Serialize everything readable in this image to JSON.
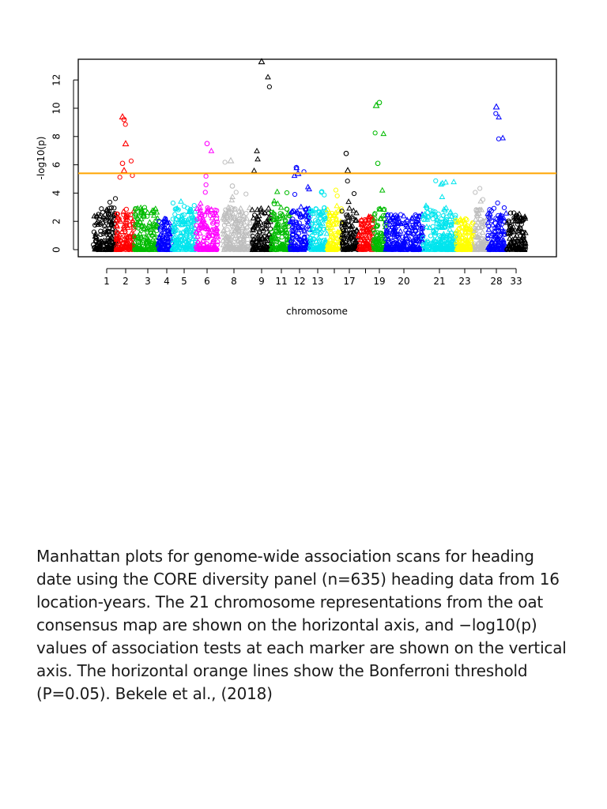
{
  "chart_data": {
    "type": "scatter",
    "xlabel": "chromosome",
    "ylabel": "-log10(p)",
    "ylim": [
      -0.5,
      13.5
    ],
    "yticks": [
      0,
      2,
      4,
      6,
      8,
      10,
      12
    ],
    "threshold": {
      "value": 5.4,
      "color": "#ffa500"
    },
    "grid": false,
    "legend": "none",
    "chromosomes": [
      {
        "label": "1",
        "color": "#000000",
        "max": 3.7
      },
      {
        "label": "2",
        "color": "#ff0000",
        "max": 9.4
      },
      {
        "label": "3",
        "color": "#00bb00",
        "max": 3.2
      },
      {
        "label": "4",
        "color": "#0000ff",
        "max": 2.2
      },
      {
        "label": "5",
        "color": "#00e5ee",
        "max": 3.5
      },
      {
        "label": "6",
        "color": "#ff00ff",
        "max": 7.5
      },
      {
        "label": "8",
        "color": "#bebebe",
        "max": 6.3
      },
      {
        "label": "9",
        "color": "#000000",
        "max": 13.3
      },
      {
        "label": "11",
        "color": "#00bb00",
        "max": 4.3
      },
      {
        "label": "12",
        "color": "#0000ff",
        "max": 5.8
      },
      {
        "label": "13",
        "color": "#00e5ee",
        "max": 4.3
      },
      {
        "label": "",
        "color": "#ffff00",
        "max": 4.8
      },
      {
        "label": "17",
        "color": "#000000",
        "max": 6.8
      },
      {
        "label": "",
        "color": "#ff0000",
        "max": 2.4
      },
      {
        "label": "19",
        "color": "#00bb00",
        "max": 10.4
      },
      {
        "label": "20",
        "color": "#0000ff",
        "max": 2.5
      },
      {
        "label": "21",
        "color": "#00e5ee",
        "max": 5.1
      },
      {
        "label": "23",
        "color": "#ffff00",
        "max": 2.2
      },
      {
        "label": "",
        "color": "#bebebe",
        "max": 4.5
      },
      {
        "label": "28",
        "color": "#0000ff",
        "max": 10.1
      },
      {
        "label": "33",
        "color": "#000000",
        "max": 2.6
      }
    ],
    "highlights": [
      {
        "chrom": "2",
        "y": 9.4
      },
      {
        "chrom": "2",
        "y": 9.2
      },
      {
        "chrom": "2",
        "y": 7.5
      },
      {
        "chrom": "2",
        "y": 6.1
      },
      {
        "chrom": "2",
        "y": 5.6
      },
      {
        "chrom": "6",
        "y": 7.5
      },
      {
        "chrom": "8",
        "y": 6.3
      },
      {
        "chrom": "8",
        "y": 4.5
      },
      {
        "chrom": "9",
        "y": 13.3
      },
      {
        "chrom": "17",
        "y": 6.8
      },
      {
        "chrom": "17",
        "y": 5.6
      },
      {
        "chrom": "19",
        "y": 10.4
      },
      {
        "chrom": "19",
        "y": 10.2
      },
      {
        "chrom": "19",
        "y": 6.1
      },
      {
        "chrom": "28",
        "y": 10.1
      },
      {
        "chrom": "12",
        "y": 5.8
      },
      {
        "chrom": "12",
        "y": 5.4
      }
    ]
  },
  "caption": "Manhattan plots for genome-wide association scans for heading date using the CORE diversity panel (n=635) heading data from 16 location-years. The 21 chromosome representations from the oat consensus map are shown on the horizontal axis, and −log10(p) values of association tests at each marker are shown on the vertical axis. The horizontal orange lines show the Bonferroni threshold (P=0.05). Bekele et al., (2018)"
}
